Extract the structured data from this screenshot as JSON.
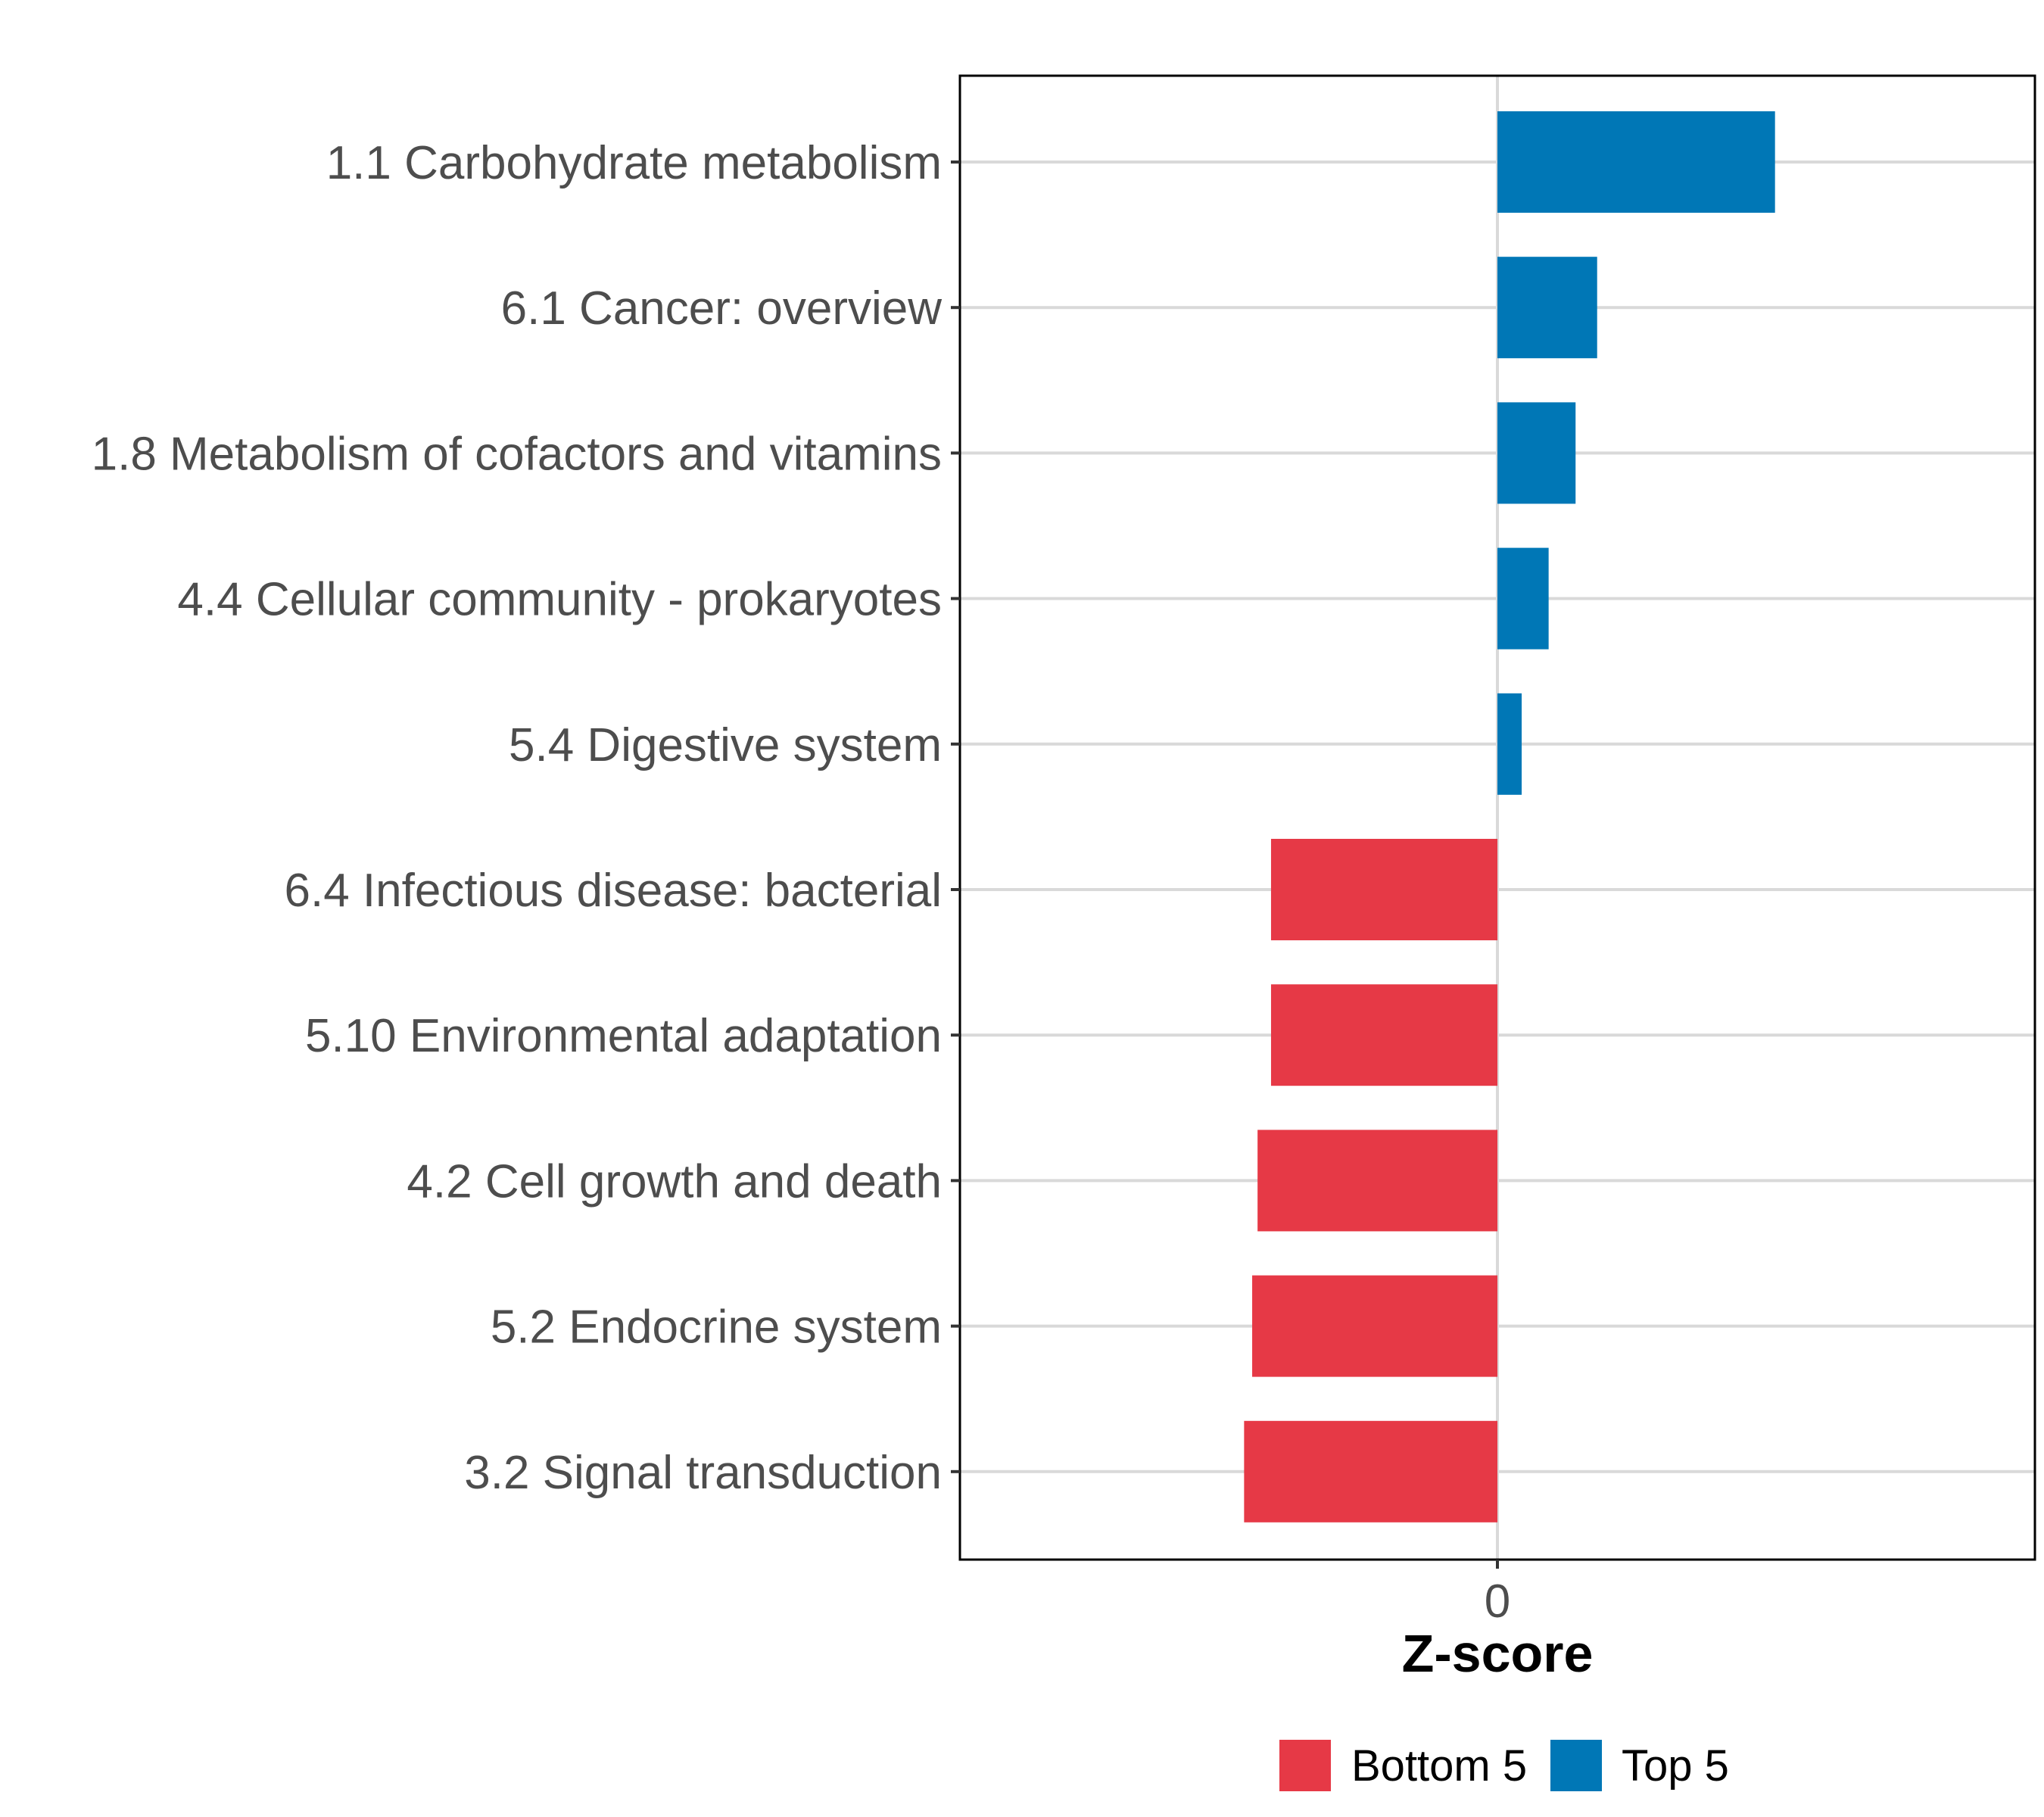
{
  "chart_data": {
    "type": "bar",
    "orientation": "horizontal",
    "title": "",
    "xlabel": "Z-score",
    "ylabel": "",
    "xlim": [
      -2.0,
      2.0
    ],
    "x_ticks": [
      0
    ],
    "x_tick_labels": [
      "0"
    ],
    "grid": true,
    "legend_position": "bottom",
    "categories": [
      "1.1 Carbohydrate metabolism",
      "6.1 Cancer: overview",
      "1.8 Metabolism of cofactors and vitamins",
      "4.4 Cellular community - prokaryotes",
      "5.4 Digestive system",
      "6.4 Infectious disease: bacterial",
      "5.10 Environmental adaptation",
      "4.2 Cell growth and death",
      "5.2 Endocrine system",
      "3.2 Signal transduction"
    ],
    "values": [
      1.03,
      0.37,
      0.29,
      0.19,
      0.09,
      -0.84,
      -0.84,
      -0.89,
      -0.91,
      -0.94
    ],
    "groups": [
      "Top 5",
      "Top 5",
      "Top 5",
      "Top 5",
      "Top 5",
      "Bottom 5",
      "Bottom 5",
      "Bottom 5",
      "Bottom 5",
      "Bottom 5"
    ],
    "legend": [
      {
        "name": "Bottom 5",
        "color": "#E63946"
      },
      {
        "name": "Top 5",
        "color": "#0077B6"
      }
    ],
    "colors": {
      "Top 5": "#0077B6",
      "Bottom 5": "#E63946",
      "gridline": "#d9d9d9",
      "panel_border": "#000000",
      "label_text": "#4d4d4d"
    }
  }
}
